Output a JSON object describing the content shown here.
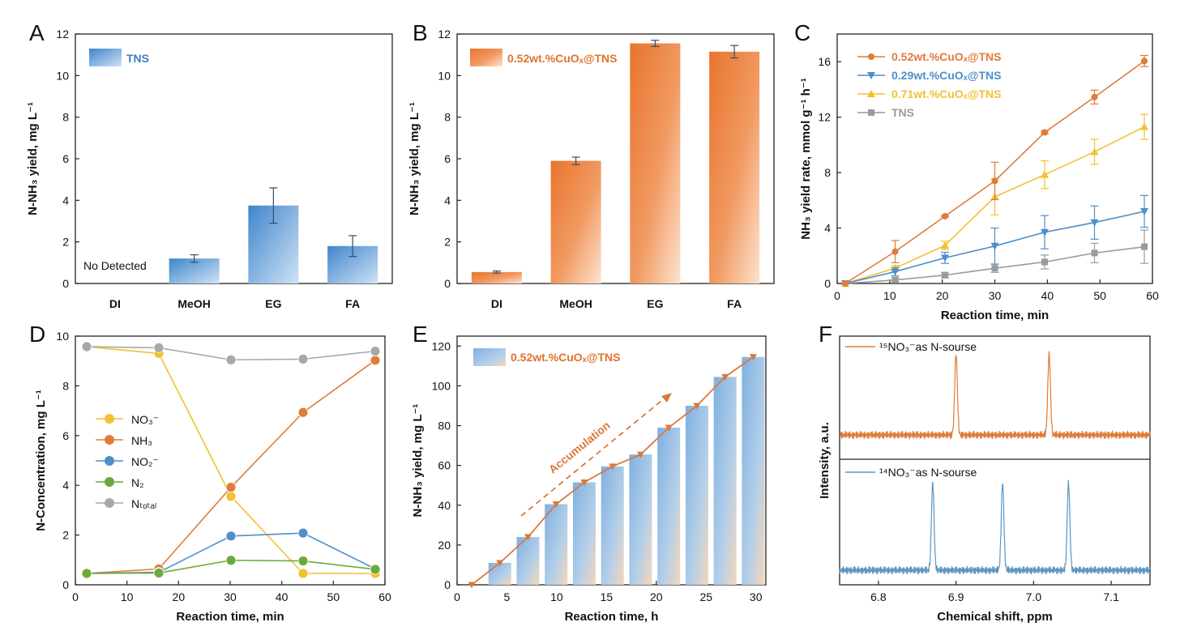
{
  "panel_labels": [
    "A",
    "B",
    "C",
    "D",
    "E",
    "F"
  ],
  "chart_data": [
    {
      "panel": "A",
      "type": "bar",
      "categories": [
        "DI",
        "MeOH",
        "EG",
        "FA"
      ],
      "values": [
        0,
        1.2,
        3.75,
        1.8
      ],
      "errors": [
        0,
        0.18,
        0.85,
        0.5
      ],
      "xlabel": "",
      "ylabel": "N-NH₃ yield, mg L⁻¹",
      "ylim": [
        0,
        12
      ],
      "yticks": [
        0,
        2,
        4,
        6,
        8,
        10,
        12
      ],
      "legend": [
        "TNS"
      ],
      "annotation": "No Detected",
      "color": "#5b9bd5"
    },
    {
      "panel": "B",
      "type": "bar",
      "categories": [
        "DI",
        "MeOH",
        "EG",
        "FA"
      ],
      "values": [
        0.55,
        5.9,
        11.55,
        11.15
      ],
      "errors": [
        0.05,
        0.18,
        0.15,
        0.3
      ],
      "xlabel": "",
      "ylabel": "N-NH₃ yield, mg L⁻¹",
      "ylim": [
        0,
        12
      ],
      "yticks": [
        0,
        2,
        4,
        6,
        8,
        10,
        12
      ],
      "legend": [
        "0.52wt.%CuOₓ@TNS"
      ],
      "color": "#ed7d31"
    },
    {
      "panel": "C",
      "type": "line",
      "x": [
        0,
        10,
        20,
        30,
        40,
        50,
        60
      ],
      "xlabel": "Reaction time, min",
      "ylabel": "NH₃ yield rate, mmol g⁻¹ h⁻¹",
      "xlim": [
        0,
        60
      ],
      "ylim": [
        0,
        18
      ],
      "xticks": [
        0,
        10,
        20,
        30,
        40,
        50,
        60
      ],
      "yticks": [
        0,
        4,
        8,
        12,
        16
      ],
      "series": [
        {
          "name": "0.52wt.%CuOₓ@TNS",
          "values": [
            0,
            2.3,
            4.85,
            7.4,
            10.9,
            13.45,
            16.05
          ],
          "errors": [
            0,
            0.8,
            0.05,
            1.35,
            0.1,
            0.5,
            0.4
          ],
          "color": "#e07b39",
          "marker": "circle"
        },
        {
          "name": "0.29wt.%CuOₓ@TNS",
          "values": [
            0,
            0.85,
            1.85,
            2.7,
            3.7,
            4.4,
            5.2
          ],
          "errors": [
            0,
            0.3,
            0.4,
            1.3,
            1.2,
            1.2,
            1.15
          ],
          "color": "#4e8fc8",
          "marker": "triangle-down"
        },
        {
          "name": "0.71wt.%CuOₓ@TNS",
          "values": [
            0,
            1.1,
            2.75,
            6.25,
            7.85,
            9.5,
            11.3
          ],
          "errors": [
            0,
            0.2,
            0.3,
            1.3,
            1.0,
            0.9,
            0.9
          ],
          "color": "#f2c12e",
          "marker": "triangle-up"
        },
        {
          "name": "TNS",
          "values": [
            0,
            0.25,
            0.6,
            1.1,
            1.55,
            2.2,
            2.65
          ],
          "errors": [
            0,
            0.15,
            0.2,
            0.3,
            0.5,
            0.7,
            1.2
          ],
          "color": "#9a9a9a",
          "marker": "square"
        }
      ]
    },
    {
      "panel": "D",
      "type": "line",
      "x": [
        0,
        15,
        30,
        45,
        60
      ],
      "xlabel": "Reaction time, min",
      "ylabel": "N-Concentration, mg L⁻¹",
      "xlim": [
        0,
        60
      ],
      "ylim": [
        0,
        10
      ],
      "xticks": [
        0,
        10,
        20,
        30,
        40,
        50,
        60
      ],
      "yticks": [
        0,
        2,
        4,
        6,
        8,
        10
      ],
      "series": [
        {
          "name": "NO₃⁻",
          "values": [
            10,
            9.7,
            3.4,
            0,
            0
          ],
          "color": "#f2c12e"
        },
        {
          "name": "NH₃",
          "values": [
            0,
            0.2,
            3.8,
            7.1,
            9.4
          ],
          "color": "#e07b39"
        },
        {
          "name": "NO₂⁻",
          "values": [
            0,
            0.05,
            1.65,
            1.78,
            0.2
          ],
          "color": "#4e8fc8"
        },
        {
          "name": "N₂",
          "values": [
            0,
            0.02,
            0.58,
            0.55,
            0.18
          ],
          "color": "#6aaa3a"
        },
        {
          "name": "Nₜₒₜₐₗ",
          "values": [
            10,
            9.95,
            9.42,
            9.45,
            9.8
          ],
          "color": "#a8a8a8"
        }
      ]
    },
    {
      "panel": "E",
      "type": "bar",
      "x": [
        0,
        3,
        6,
        9,
        12,
        15,
        18,
        21,
        24,
        27,
        30
      ],
      "values": [
        0,
        11,
        24,
        40.5,
        51.5,
        59.5,
        65.5,
        79,
        90,
        104.5,
        114.5
      ],
      "xlabel": "Reaction time, h",
      "ylabel": "N-NH₃ yield, mg L⁻¹",
      "xlim": [
        0,
        31
      ],
      "ylim": [
        0,
        125
      ],
      "xticks": [
        0,
        5,
        10,
        15,
        20,
        25,
        30
      ],
      "yticks": [
        0,
        20,
        40,
        60,
        80,
        100,
        120
      ],
      "legend": [
        "0.52wt.%CuOₓ@TNS"
      ],
      "annotation": "Accumulation",
      "bar_color": "#8fb8e2",
      "line_color": "#d9793a"
    },
    {
      "panel": "F",
      "type": "line",
      "xlabel": "Chemical shift, ppm",
      "ylabel": "Intensity, a.u.",
      "xlim": [
        6.75,
        7.15
      ],
      "xticks": [
        6.8,
        6.9,
        7.0,
        7.1
      ],
      "series": [
        {
          "name": "¹⁵NO₃⁻as N-sourse",
          "peaks_ppm": [
            6.9,
            7.02
          ],
          "color": "#e07b39"
        },
        {
          "name": "¹⁴NO₃⁻as N-sourse",
          "peaks_ppm": [
            6.87,
            6.96,
            7.045
          ],
          "color": "#5b96c4"
        }
      ]
    }
  ]
}
